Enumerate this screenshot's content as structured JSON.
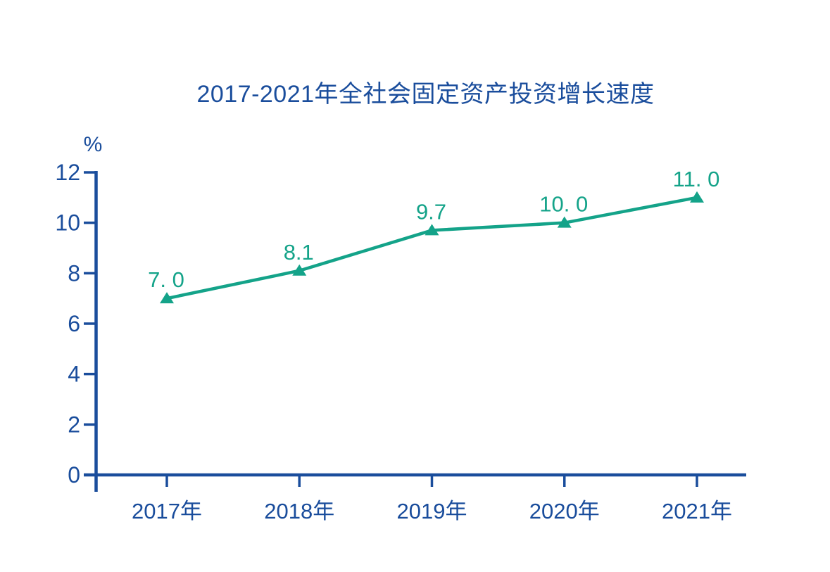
{
  "chart_data": {
    "type": "line",
    "title": "2017-2021年全社会固定资产投资增长速度",
    "y_unit": "%",
    "xlabel": "",
    "ylabel": "%",
    "categories": [
      "2017年",
      "2018年",
      "2019年",
      "2020年",
      "2021年"
    ],
    "values": [
      7.0,
      8.1,
      9.7,
      10.0,
      11.0
    ],
    "point_labels": [
      "7. 0",
      "8.1",
      "9.7",
      "10. 0",
      "11. 0"
    ],
    "yticks": [
      0,
      2,
      4,
      6,
      8,
      10,
      12
    ],
    "ylim": [
      0,
      12
    ],
    "grid": false,
    "legend": "none",
    "marker": "triangle-up",
    "colors": {
      "axis": "#1A4D9C",
      "series": "#14A389",
      "background": "#FFFFFF"
    }
  }
}
